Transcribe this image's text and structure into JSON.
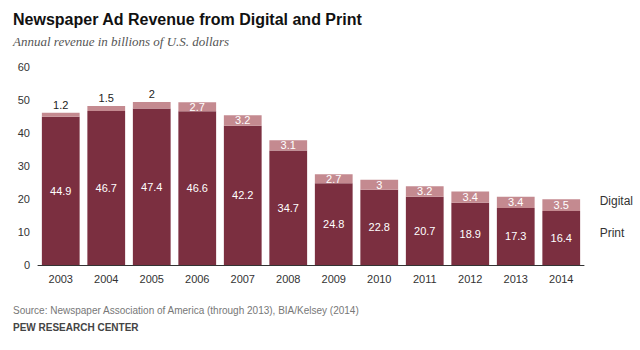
{
  "chart_data": {
    "type": "bar",
    "title": "Newspaper Ad Revenue from Digital and Print",
    "subtitle": "Annual revenue in billions of U.S. dollars",
    "annotations": [
      "Source: Newspaper Association of America (through 2013), BIA/Kelsey (2014)",
      "PEW RESEARCH CENTER"
    ],
    "categories": [
      "2003",
      "2004",
      "2005",
      "2006",
      "2007",
      "2008",
      "2009",
      "2010",
      "2011",
      "2012",
      "2013",
      "2014"
    ],
    "series": [
      {
        "name": "Print",
        "color": "#7b2f40",
        "values": [
          44.9,
          46.7,
          47.4,
          46.6,
          42.2,
          34.7,
          24.8,
          22.8,
          20.7,
          18.9,
          17.3,
          16.4
        ]
      },
      {
        "name": "Digital",
        "color": "#c48a90",
        "values": [
          1.2,
          1.5,
          2,
          2.7,
          3.2,
          3.1,
          2.7,
          3,
          3.2,
          3.4,
          3.4,
          3.5
        ]
      }
    ],
    "stacked": true,
    "data_labels": true,
    "legend": "right",
    "grid": false,
    "ylim": [
      0,
      60
    ],
    "yticks": [
      0,
      10,
      20,
      30,
      40,
      50,
      60
    ]
  }
}
